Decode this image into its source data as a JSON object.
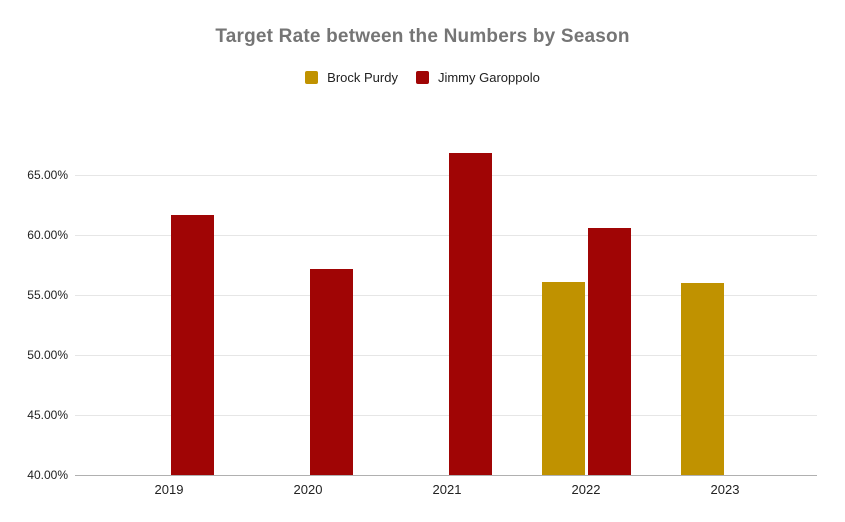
{
  "page": {
    "background": "#ffffff"
  },
  "chart_data": {
    "type": "bar",
    "title": "Target Rate between the Numbers by Season",
    "title_color": "#757575",
    "categories": [
      "2019",
      "2020",
      "2021",
      "2022",
      "2023"
    ],
    "series": [
      {
        "name": "Brock Purdy",
        "color": "#C09200",
        "values": [
          null,
          null,
          null,
          56.1,
          56.0
        ]
      },
      {
        "name": "Jimmy Garoppolo",
        "color": "#A00505",
        "values": [
          61.7,
          57.2,
          66.8,
          60.6,
          null
        ]
      }
    ],
    "y_axis": {
      "min": 40,
      "max": 65,
      "step": 5,
      "tick_labels": [
        "40.00%",
        "45.00%",
        "50.00%",
        "55.00%",
        "60.00%",
        "65.00%"
      ],
      "format": "0.00%"
    },
    "x_axis": {
      "tick_labels": [
        "2019",
        "2020",
        "2021",
        "2022",
        "2023"
      ]
    },
    "legend_position": "top",
    "grid": true,
    "background": "#ffffff"
  }
}
